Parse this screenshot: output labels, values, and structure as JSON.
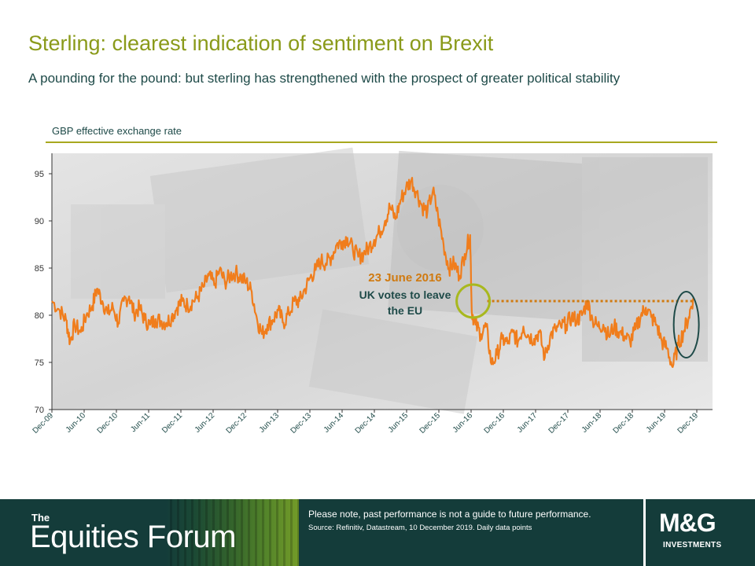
{
  "header": {
    "title": "Sterling: clearest indication of sentiment on Brexit",
    "subtitle": "A pounding for the pound: but sterling has strengthened with the prospect of greater political stability"
  },
  "footer": {
    "brand_the": "The",
    "brand_name": "Equities Forum",
    "disclaimer": "Please note, past performance  is not a guide to future performance.",
    "source": "Source: Refinitiv, Datastream, 10 December 2019. Daily data points",
    "logo": "M&G",
    "logo_sub": "INVESTMENTS"
  },
  "colors": {
    "series": "#f07d1c",
    "annotation": "#d07a10",
    "green_circle": "#a8b81e",
    "teal_ellipse": "#1e4a48",
    "title": "#8a9a1a"
  },
  "chart_data": {
    "type": "line",
    "title": "GBP effective exchange rate",
    "x_ticks": [
      "Dec-09",
      "Jun-10",
      "Dec-10",
      "Jun-11",
      "Dec-11",
      "Jun-12",
      "Dec-12",
      "Jun-13",
      "Dec-13",
      "Jun-14",
      "Dec-14",
      "Jun-15",
      "Dec-15",
      "Jun-16",
      "Dec-16",
      "Jun-17",
      "Dec-17",
      "Jun-18",
      "Dec-18",
      "Jun-19",
      "Dec-19"
    ],
    "y_ticks": [
      70,
      75,
      80,
      85,
      90,
      95
    ],
    "ylim": [
      70,
      96
    ],
    "xlim": [
      "2009-12-01",
      "2019-12-31"
    ],
    "grid": false,
    "series": [
      {
        "points": [
          [
            "2009-12-01",
            81.5
          ],
          [
            "2010-01-15",
            80.5
          ],
          [
            "2010-02-20",
            79.5
          ],
          [
            "2010-03-15",
            77.2
          ],
          [
            "2010-04-10",
            79
          ],
          [
            "2010-05-15",
            78.2
          ],
          [
            "2010-06-15",
            80
          ],
          [
            "2010-07-20",
            81
          ],
          [
            "2010-08-15",
            82.8
          ],
          [
            "2010-09-15",
            81.5
          ],
          [
            "2010-10-15",
            80.2
          ],
          [
            "2010-11-15",
            80.8
          ],
          [
            "2010-12-15",
            79.2
          ],
          [
            "2011-01-15",
            81.5
          ],
          [
            "2011-02-15",
            82
          ],
          [
            "2011-03-15",
            80.2
          ],
          [
            "2011-04-15",
            80.8
          ],
          [
            "2011-05-15",
            79.5
          ],
          [
            "2011-06-15",
            79
          ],
          [
            "2011-07-15",
            79.6
          ],
          [
            "2011-08-15",
            79.4
          ],
          [
            "2011-09-15",
            79.2
          ],
          [
            "2011-10-15",
            79.8
          ],
          [
            "2011-11-15",
            80.8
          ],
          [
            "2011-12-15",
            81.5
          ],
          [
            "2012-01-15",
            81
          ],
          [
            "2012-02-15",
            81.5
          ],
          [
            "2012-03-15",
            82
          ],
          [
            "2012-04-15",
            83
          ],
          [
            "2012-05-15",
            84.2
          ],
          [
            "2012-06-15",
            83.2
          ],
          [
            "2012-07-15",
            84.8
          ],
          [
            "2012-08-15",
            83.5
          ],
          [
            "2012-09-15",
            84.2
          ],
          [
            "2012-10-15",
            84.5
          ],
          [
            "2012-11-15",
            84
          ],
          [
            "2012-12-15",
            83.5
          ],
          [
            "2013-01-15",
            82.5
          ],
          [
            "2013-02-15",
            79.5
          ],
          [
            "2013-03-15",
            78
          ],
          [
            "2013-04-15",
            79
          ],
          [
            "2013-05-15",
            79.5
          ],
          [
            "2013-06-15",
            80.5
          ],
          [
            "2013-07-15",
            79.2
          ],
          [
            "2013-08-15",
            80.2
          ],
          [
            "2013-09-15",
            81.5
          ],
          [
            "2013-10-15",
            81.5
          ],
          [
            "2013-11-15",
            82.8
          ],
          [
            "2013-12-15",
            84
          ],
          [
            "2014-01-15",
            84.8
          ],
          [
            "2014-02-15",
            85.8
          ],
          [
            "2014-03-15",
            85.5
          ],
          [
            "2014-04-15",
            86.2
          ],
          [
            "2014-05-15",
            87.5
          ],
          [
            "2014-06-15",
            87.8
          ],
          [
            "2014-07-15",
            88.2
          ],
          [
            "2014-08-15",
            87
          ],
          [
            "2014-09-15",
            86.2
          ],
          [
            "2014-10-15",
            86.5
          ],
          [
            "2014-11-15",
            87.2
          ],
          [
            "2014-12-15",
            88
          ],
          [
            "2015-01-15",
            88.8
          ],
          [
            "2015-02-15",
            90
          ],
          [
            "2015-03-15",
            91.5
          ],
          [
            "2015-04-15",
            90.2
          ],
          [
            "2015-05-15",
            92.2
          ],
          [
            "2015-06-15",
            93.5
          ],
          [
            "2015-07-15",
            94.3
          ],
          [
            "2015-08-15",
            93
          ],
          [
            "2015-09-15",
            91.5
          ],
          [
            "2015-10-15",
            91
          ],
          [
            "2015-11-15",
            93.2
          ],
          [
            "2015-12-15",
            90.5
          ],
          [
            "2016-01-15",
            87.5
          ],
          [
            "2016-02-15",
            85
          ],
          [
            "2016-03-15",
            85.5
          ],
          [
            "2016-04-15",
            84.2
          ],
          [
            "2016-05-15",
            86.5
          ],
          [
            "2016-06-15",
            88.5
          ],
          [
            "2016-06-24",
            80.5
          ],
          [
            "2016-07-15",
            79
          ],
          [
            "2016-08-15",
            78
          ],
          [
            "2016-09-15",
            78.8
          ],
          [
            "2016-10-15",
            74.8
          ],
          [
            "2016-11-15",
            75.8
          ],
          [
            "2016-12-15",
            77.5
          ],
          [
            "2017-01-15",
            77
          ],
          [
            "2017-02-15",
            78.2
          ],
          [
            "2017-03-15",
            77.2
          ],
          [
            "2017-04-15",
            78.8
          ],
          [
            "2017-05-15",
            77.8
          ],
          [
            "2017-06-15",
            77.5
          ],
          [
            "2017-07-15",
            78.2
          ],
          [
            "2017-08-15",
            75.5
          ],
          [
            "2017-09-15",
            77.8
          ],
          [
            "2017-10-15",
            78.5
          ],
          [
            "2017-11-15",
            78.8
          ],
          [
            "2017-12-15",
            79
          ],
          [
            "2018-01-15",
            79.8
          ],
          [
            "2018-02-15",
            79.5
          ],
          [
            "2018-03-15",
            80
          ],
          [
            "2018-04-15",
            81.5
          ],
          [
            "2018-05-15",
            79.5
          ],
          [
            "2018-06-15",
            78.8
          ],
          [
            "2018-07-15",
            79
          ],
          [
            "2018-08-15",
            77.8
          ],
          [
            "2018-09-15",
            78.8
          ],
          [
            "2018-10-15",
            78.2
          ],
          [
            "2018-11-15",
            77.8
          ],
          [
            "2018-12-15",
            77.2
          ],
          [
            "2019-01-15",
            78.5
          ],
          [
            "2019-02-15",
            80
          ],
          [
            "2019-03-15",
            80.8
          ],
          [
            "2019-04-15",
            79.8
          ],
          [
            "2019-05-15",
            79
          ],
          [
            "2019-06-15",
            77.2
          ],
          [
            "2019-07-15",
            76.5
          ],
          [
            "2019-08-15",
            74.5
          ],
          [
            "2019-09-15",
            76.8
          ],
          [
            "2019-10-15",
            78.2
          ],
          [
            "2019-11-15",
            79.8
          ],
          [
            "2019-12-10",
            81.8
          ]
        ]
      }
    ],
    "annotations": [
      {
        "date_label": "23 June 2016",
        "text_line1": "UK votes to leave",
        "text_line2": "the EU",
        "x": "2016-06-23",
        "y": 81.5
      },
      {
        "type": "reference_line",
        "y": 81.5,
        "from": "2016-06-23",
        "to": "2019-12-10",
        "style": "dotted"
      },
      {
        "type": "ellipse",
        "x": "2019-11-01",
        "y": 79
      }
    ]
  }
}
